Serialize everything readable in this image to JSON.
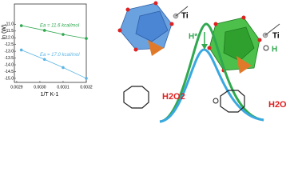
{
  "chart_data": {
    "type": "line",
    "y_label": "ln (W)",
    "x_label": "1/T K-1",
    "xlim": [
      0.00289,
      0.0032
    ],
    "ylim": [
      -9.5,
      -15.3
    ],
    "xticks": [
      {
        "value": 0.0029,
        "label": "0.0029"
      },
      {
        "value": 0.003,
        "label": "0.0030"
      },
      {
        "value": 0.0031,
        "label": "0.0031"
      },
      {
        "value": 0.0032,
        "label": "0.0032"
      }
    ],
    "yticks": [
      {
        "value": -11,
        "label": "-11.0"
      },
      {
        "value": -11.5,
        "label": "-11.5"
      },
      {
        "value": -12,
        "label": "-12.0"
      },
      {
        "value": -12.5,
        "label": "-12.5"
      },
      {
        "value": -13,
        "label": "-13.0"
      },
      {
        "value": -13.5,
        "label": "-13.5"
      },
      {
        "value": -14,
        "label": "-14.0"
      },
      {
        "value": -14.5,
        "label": "-14.5"
      },
      {
        "value": -15,
        "label": "-15.0"
      }
    ],
    "x": [
      0.00292,
      0.00302,
      0.0031,
      0.0032
    ],
    "series": [
      {
        "name": "Ea = 11.6 kcal/mol",
        "color": "#2fa84f",
        "values": [
          -11.1,
          -11.45,
          -11.75,
          -12.05
        ]
      },
      {
        "name": "Ea = 17.0 kcal/mol",
        "color": "#5ab4e5",
        "values": [
          -12.9,
          -13.6,
          -14.2,
          -15.0
        ]
      }
    ]
  },
  "labels": {
    "ti_left": "Ti",
    "ti_right": "Ti",
    "h": "H",
    "h_star": "H*",
    "h2o2": "H2O2",
    "h2o": "H2O"
  }
}
